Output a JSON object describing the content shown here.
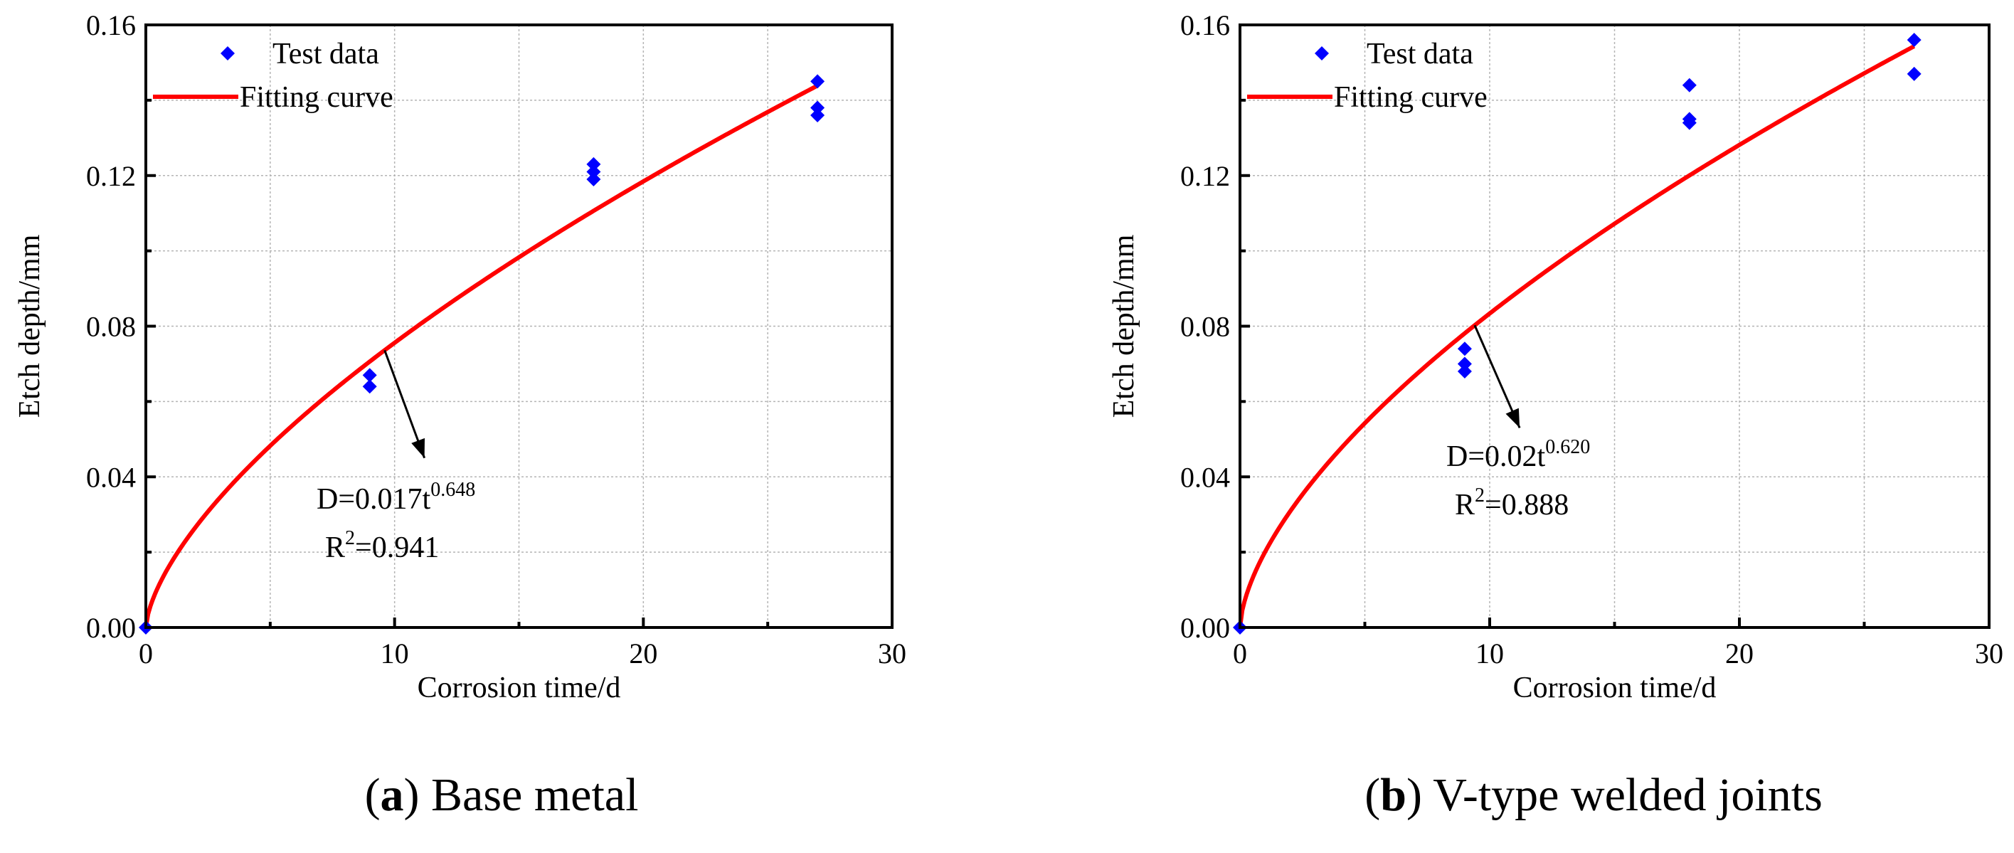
{
  "chart_data": [
    {
      "type": "scatter",
      "panel_label": "a",
      "caption": "Base metal",
      "xlabel": "Corrosion time/d",
      "ylabel": "Etch depth/mm",
      "xlim": [
        0,
        30
      ],
      "ylim": [
        0,
        0.16
      ],
      "xticks": [
        "0",
        "10",
        "20",
        "30"
      ],
      "yticks": [
        "0.00",
        "0.04",
        "0.08",
        "0.12",
        "0.16"
      ],
      "minor_x_step": 5,
      "minor_y_step": 0.02,
      "grid": true,
      "legend": {
        "position": "top-left",
        "items": [
          "Test data",
          "Fitting curve"
        ]
      },
      "series": [
        {
          "name": "Test data",
          "kind": "scatter",
          "marker": "diamond",
          "color": "#0000ff",
          "points": [
            [
              0,
              0
            ],
            [
              9,
              0.064
            ],
            [
              9,
              0.067
            ],
            [
              18,
              0.119
            ],
            [
              18,
              0.121
            ],
            [
              18,
              0.123
            ],
            [
              27,
              0.136
            ],
            [
              27,
              0.138
            ],
            [
              27,
              0.145
            ]
          ]
        },
        {
          "name": "Fitting curve",
          "kind": "line",
          "color": "#ff0000",
          "coefficient": 0.017,
          "exponent": 0.648,
          "x_range": [
            0,
            27
          ]
        }
      ],
      "annotation": {
        "equation_base": "D=0.017t",
        "equation_exponent": "0.648",
        "r2_prefix": "R",
        "r2_power": "2",
        "r2_value": "=0.941",
        "arrow_from_x": 9.6,
        "arrow_to": [
          11.2,
          0.045
        ]
      }
    },
    {
      "type": "scatter",
      "panel_label": "b",
      "caption": "V-type welded joints",
      "xlabel": "Corrosion time/d",
      "ylabel": "Etch depth/mm",
      "xlim": [
        0,
        30
      ],
      "ylim": [
        0,
        0.16
      ],
      "xticks": [
        "0",
        "10",
        "20",
        "30"
      ],
      "yticks": [
        "0.00",
        "0.04",
        "0.08",
        "0.12",
        "0.16"
      ],
      "minor_x_step": 5,
      "minor_y_step": 0.02,
      "grid": true,
      "legend": {
        "position": "top-left",
        "items": [
          "Test data",
          "Fitting curve"
        ]
      },
      "series": [
        {
          "name": "Test data",
          "kind": "scatter",
          "marker": "diamond",
          "color": "#0000ff",
          "points": [
            [
              0,
              0
            ],
            [
              9,
              0.068
            ],
            [
              9,
              0.07
            ],
            [
              9,
              0.074
            ],
            [
              18,
              0.134
            ],
            [
              18,
              0.135
            ],
            [
              18,
              0.144
            ],
            [
              27,
              0.147
            ],
            [
              27,
              0.156
            ]
          ]
        },
        {
          "name": "Fitting curve",
          "kind": "line",
          "color": "#ff0000",
          "coefficient": 0.02,
          "exponent": 0.62,
          "x_range": [
            0,
            27
          ]
        }
      ],
      "annotation": {
        "equation_base": "D=0.02t",
        "equation_exponent": "0.620",
        "r2_prefix": "R",
        "r2_power": "2",
        "r2_value": "=0.888",
        "arrow_from_x": 9.4,
        "arrow_to": [
          11.2,
          0.053
        ]
      }
    }
  ]
}
